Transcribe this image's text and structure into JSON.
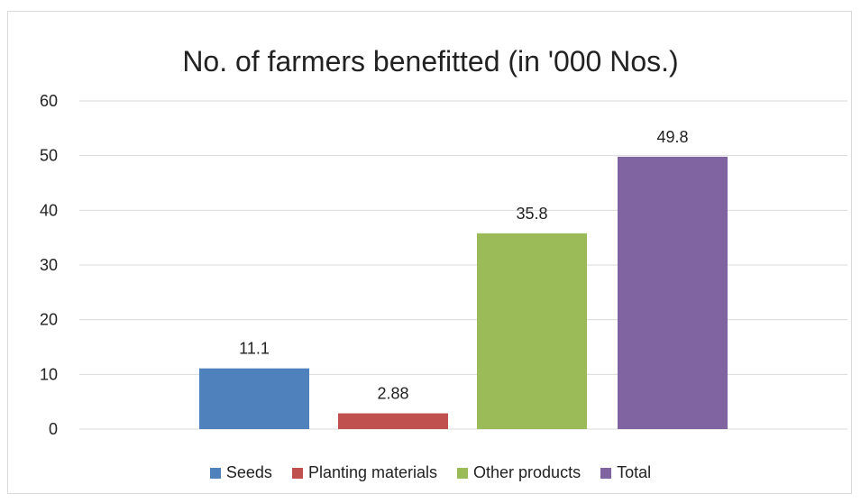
{
  "chart_data": {
    "type": "bar",
    "title": "No. of farmers benefitted (in '000 Nos.)",
    "xlabel": "",
    "ylabel": "",
    "ylim": [
      0,
      60
    ],
    "yticks": [
      0,
      10,
      20,
      30,
      40,
      50,
      60
    ],
    "grid": true,
    "legend_position": "bottom",
    "series": [
      {
        "name": "Seeds",
        "value": 11.1,
        "label": "11.1",
        "color": "#4f81bd"
      },
      {
        "name": "Planting materials",
        "value": 2.88,
        "label": "2.88",
        "color": "#c0504d"
      },
      {
        "name": "Other products",
        "value": 35.8,
        "label": "35.8",
        "color": "#9bbb59"
      },
      {
        "name": "Total",
        "value": 49.8,
        "label": "49.8",
        "color": "#8064a2"
      }
    ]
  }
}
